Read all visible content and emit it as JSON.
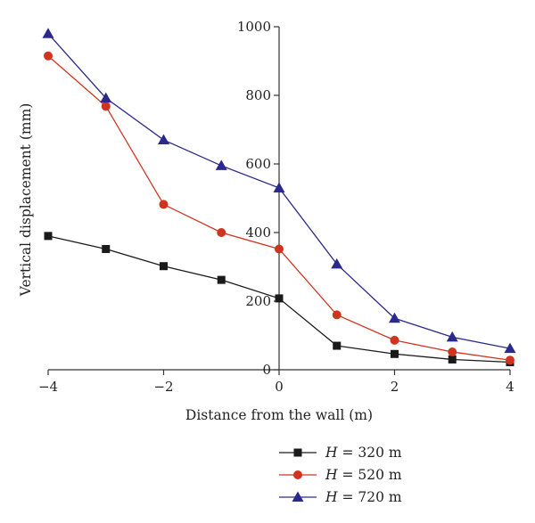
{
  "chart_data": {
    "type": "line",
    "xlabel": "Distance from the wall (m)",
    "ylabel": "Vertical displacement (mm)",
    "xlim": [
      -4,
      4
    ],
    "ylim": [
      0,
      1000
    ],
    "x_ticks": [
      -4,
      -2,
      0,
      2,
      4
    ],
    "y_ticks": [
      0,
      200,
      400,
      600,
      800,
      1000
    ],
    "x_tick_labels": [
      "−4",
      "−2",
      "0",
      "2",
      "4"
    ],
    "y_tick_labels": [
      "0",
      "200",
      "400",
      "600",
      "800",
      "1000"
    ],
    "grid": false,
    "legend_position": "bottom-center",
    "series": [
      {
        "key": "h320",
        "name": "H = 320 m",
        "legend_var": "H",
        "legend_rest": " = 320 m",
        "color": "#1a1a1a",
        "marker": "square",
        "x": [
          -4,
          -3,
          -2,
          -1,
          0,
          1,
          2,
          3,
          4
        ],
        "y": [
          390,
          352,
          302,
          262,
          208,
          70,
          46,
          30,
          22
        ]
      },
      {
        "key": "h520",
        "name": "H = 520 m",
        "legend_var": "H",
        "legend_rest": " = 520 m",
        "color": "#d0341e",
        "marker": "circle",
        "x": [
          -4,
          -3,
          -2,
          -1,
          0,
          1,
          2,
          3,
          4
        ],
        "y": [
          915,
          768,
          482,
          400,
          352,
          160,
          86,
          52,
          28
        ]
      },
      {
        "key": "h720",
        "name": "H = 720 m",
        "legend_var": "H",
        "legend_rest": " = 720 m",
        "color": "#2b2a8c",
        "marker": "triangle",
        "x": [
          -4,
          -3,
          -2,
          -1,
          0,
          1,
          2,
          3,
          4
        ],
        "y": [
          980,
          792,
          670,
          595,
          530,
          308,
          150,
          95,
          62
        ]
      }
    ]
  }
}
